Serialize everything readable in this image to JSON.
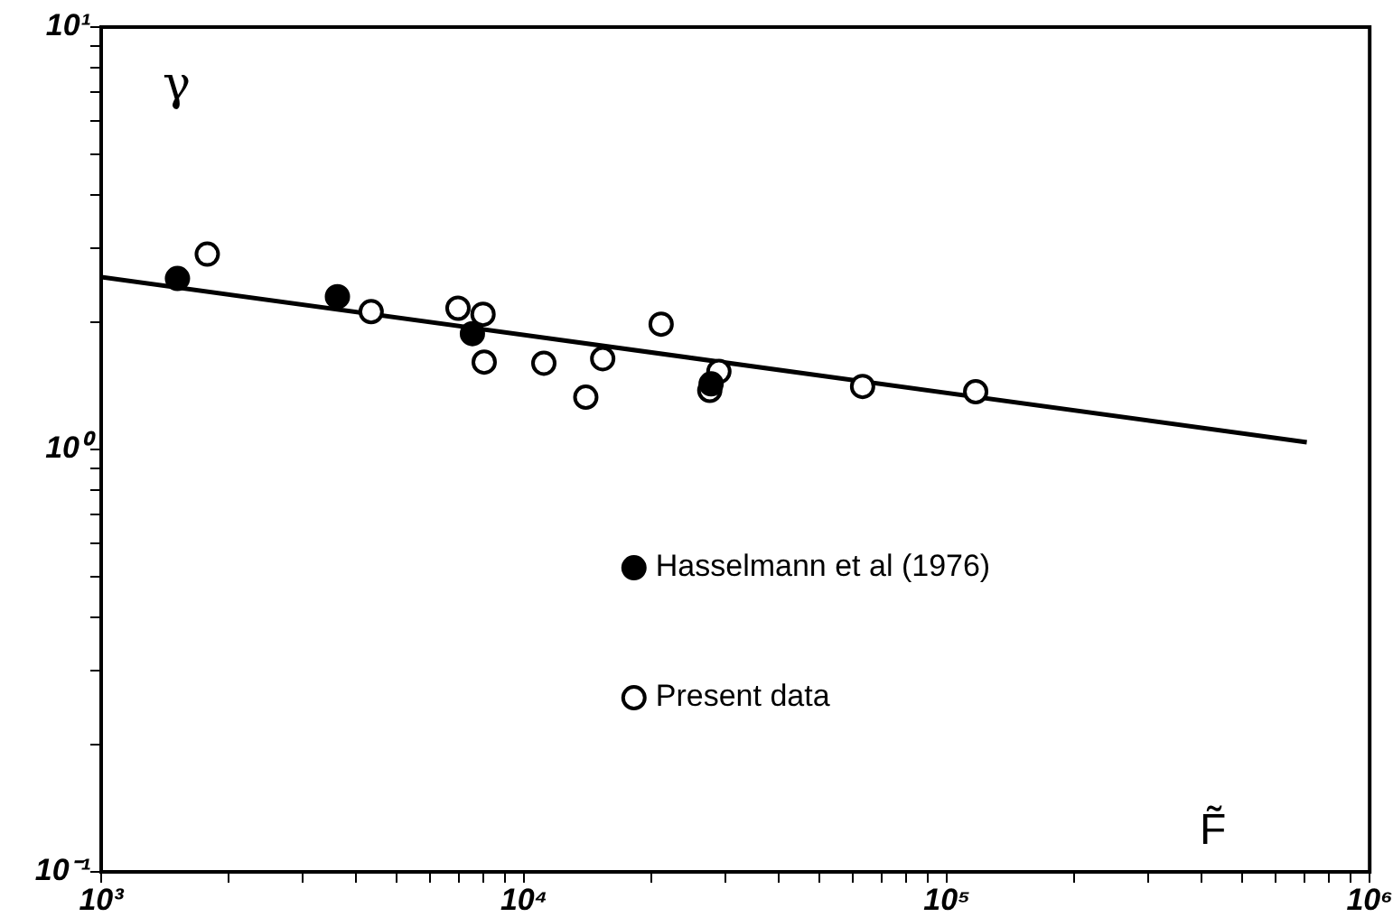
{
  "chart_data": {
    "type": "scatter",
    "xlabel": "F̃",
    "ylabel": "γ",
    "log": "xy",
    "grid": false,
    "legend": "center",
    "marker": "circle",
    "xlim": [
      1000,
      1000000
    ],
    "ylim": [
      0.1,
      10
    ],
    "xticks": [
      {
        "value": 1000,
        "label": "10³"
      },
      {
        "value": 2000,
        "label": null
      },
      {
        "value": 3000,
        "label": null
      },
      {
        "value": 4000,
        "label": null
      },
      {
        "value": 5000,
        "label": null
      },
      {
        "value": 6000,
        "label": null
      },
      {
        "value": 7000,
        "label": null
      },
      {
        "value": 8000,
        "label": null
      },
      {
        "value": 9000,
        "label": null
      },
      {
        "value": 10000,
        "label": "10⁴"
      },
      {
        "value": 20000,
        "label": null
      },
      {
        "value": 30000,
        "label": null
      },
      {
        "value": 40000,
        "label": null
      },
      {
        "value": 50000,
        "label": null
      },
      {
        "value": 60000,
        "label": null
      },
      {
        "value": 70000,
        "label": null
      },
      {
        "value": 80000,
        "label": null
      },
      {
        "value": 90000,
        "label": null
      },
      {
        "value": 100000,
        "label": "10⁵"
      },
      {
        "value": 200000,
        "label": null
      },
      {
        "value": 300000,
        "label": null
      },
      {
        "value": 400000,
        "label": null
      },
      {
        "value": 500000,
        "label": null
      },
      {
        "value": 600000,
        "label": null
      },
      {
        "value": 700000,
        "label": null
      },
      {
        "value": 800000,
        "label": null
      },
      {
        "value": 900000,
        "label": null
      },
      {
        "value": 1000000,
        "label": "10⁶"
      }
    ],
    "yticks": [
      {
        "value": 0.1,
        "label": "10⁻¹"
      },
      {
        "value": 0.2,
        "label": null
      },
      {
        "value": 0.3,
        "label": null
      },
      {
        "value": 0.4,
        "label": null
      },
      {
        "value": 0.5,
        "label": null
      },
      {
        "value": 0.6,
        "label": null
      },
      {
        "value": 0.7,
        "label": null
      },
      {
        "value": 0.8,
        "label": null
      },
      {
        "value": 0.9,
        "label": null
      },
      {
        "value": 1,
        "label": "10⁰"
      },
      {
        "value": 2,
        "label": null
      },
      {
        "value": 3,
        "label": null
      },
      {
        "value": 4,
        "label": null
      },
      {
        "value": 5,
        "label": null
      },
      {
        "value": 6,
        "label": null
      },
      {
        "value": 7,
        "label": null
      },
      {
        "value": 8,
        "label": null
      },
      {
        "value": 9,
        "label": null
      },
      {
        "value": 10,
        "label": "10¹"
      }
    ],
    "series": [
      {
        "name": "Hasselmann et al (1976)",
        "color": "#000000",
        "x": [
          1515,
          3620,
          7550,
          27700
        ],
        "values": [
          2.54,
          2.3,
          1.88,
          1.43
        ]
      },
      {
        "name": "Present data",
        "color": "#ffffff",
        "x": [
          1782,
          4350,
          6980,
          8000,
          8050,
          11140,
          14000,
          15350,
          21100,
          28900,
          27500,
          63200,
          117000
        ],
        "values": [
          2.9,
          2.12,
          2.16,
          2.09,
          1.61,
          1.6,
          1.33,
          1.64,
          1.98,
          1.53,
          1.38,
          1.41,
          1.37
        ]
      },
      {
        "type": "line",
        "color": "#000000",
        "marker": "none",
        "line_style": "solid",
        "x": [
          1000,
          710000
        ],
        "values": [
          2.56,
          1.04
        ]
      }
    ]
  }
}
